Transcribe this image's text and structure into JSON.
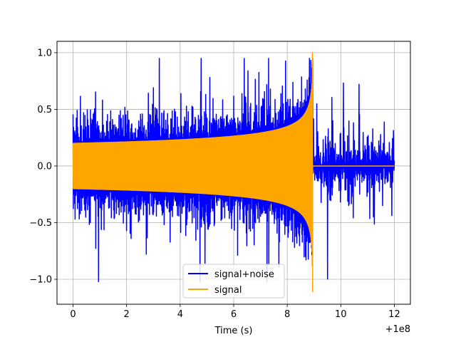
{
  "chart_data": {
    "type": "line",
    "title": "",
    "xlabel": "Time (s)",
    "ylabel": "",
    "x_offset_label": "+1e8",
    "xlim": [
      -0.6,
      12.6
    ],
    "ylim": [
      -1.22,
      1.1
    ],
    "x_ticks": [
      0,
      2,
      4,
      6,
      8,
      10,
      12
    ],
    "x_tick_labels": [
      "0",
      "2",
      "4",
      "6",
      "8",
      "10",
      "12"
    ],
    "y_ticks": [
      -1.0,
      -0.5,
      0.0,
      0.5,
      1.0
    ],
    "y_tick_labels": [
      "−1.0",
      "−0.5",
      "0.0",
      "0.5",
      "1.0"
    ],
    "grid": true,
    "legend_position": "lower center",
    "series": [
      {
        "name": "signal+noise",
        "color": "#0000ff",
        "description": "Noisy chirp from x=0 to 12; envelope about ±0.5 with spikes reaching ~0.95 and ~−1.02"
      },
      {
        "name": "signal",
        "color": "#ffa500",
        "description": "Chirp with amplitude rising from 0.2 at x=0 to ~1.0 at x≈8.95, then zero until 12"
      }
    ],
    "key_points": {
      "signal_start_amplitude": 0.2,
      "signal_merger_x": 8.95,
      "signal_peak_max": 1.0,
      "signal_peak_min": -1.11,
      "noise_max": 0.95,
      "noise_min": -1.02,
      "x_end": 12.0
    }
  }
}
